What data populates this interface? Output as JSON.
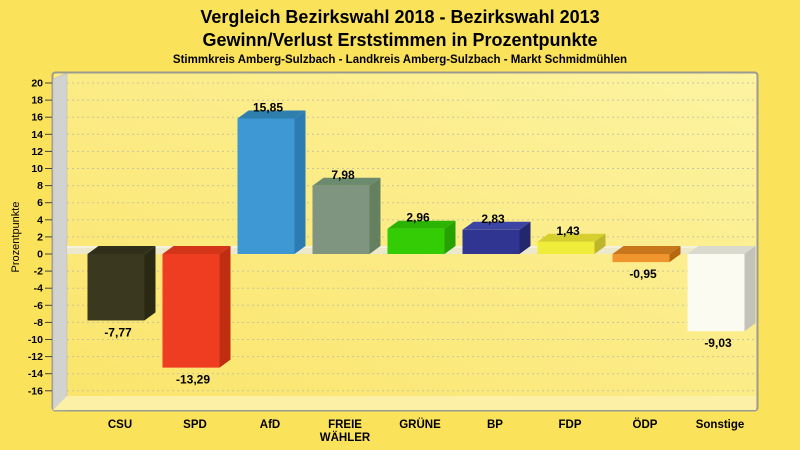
{
  "header": {
    "title_line1": "Vergleich Bezirkswahl 2018 - Bezirkswahl 2013",
    "title_line2": "Gewinn/Verlust Erststimmen in Prozentpunkte",
    "subtitle": "Stimmkreis Amberg-Sulzbach - Landkreis Amberg-Sulzbach - Markt Schmidmühlen"
  },
  "colors": {
    "page_background": "#FBE25B",
    "plot_fill_left": "#FAE469",
    "plot_fill_right": "#FDF3A2",
    "plot_border": "#9B9B8F",
    "wall_gray": "#D2D2D0",
    "floor_yellow": "#FBF0A6",
    "zero_band": "#ECE8CB",
    "gridline": "#B9B9A5",
    "label_text": "#000000"
  },
  "chart_data": {
    "type": "bar",
    "title": "Vergleich Bezirkswahl 2018 - Bezirkswahl 2013",
    "subtitle": "Gewinn/Verlust Erststimmen in Prozentpunkte",
    "footnote": "Stimmkreis Amberg-Sulzbach - Landkreis Amberg-Sulzbach - Markt Schmidmühlen",
    "xlabel": "",
    "ylabel": "Prozentpunkte",
    "ylim": [
      -16,
      20
    ],
    "yticks": [
      20,
      18,
      16,
      14,
      12,
      10,
      8,
      6,
      4,
      2,
      0,
      -2,
      -4,
      -6,
      -8,
      -10,
      -12,
      -14,
      -16
    ],
    "grid": true,
    "legend": false,
    "categories": [
      "CSU",
      "SPD",
      "AfD",
      "FREIE WÄHLER",
      "GRÜNE",
      "BP",
      "FDP",
      "ÖDP",
      "Sonstige"
    ],
    "values": [
      -7.77,
      -13.29,
      15.85,
      7.98,
      2.96,
      2.83,
      1.43,
      -0.95,
      -9.03
    ],
    "value_labels": [
      "-7,77",
      "-13,29",
      "15,85",
      "7,98",
      "2,96",
      "2,83",
      "1,43",
      "-0,95",
      "-9,03"
    ],
    "bar_colors": {
      "front": [
        "#3A381F",
        "#EE3D20",
        "#3D98D4",
        "#7F957F",
        "#33CC05",
        "#2F3590",
        "#F0EC3A",
        "#F0952C",
        "#FBFBF2"
      ],
      "side": [
        "#2A2913",
        "#C02E12",
        "#2C7BB2",
        "#64805F",
        "#27A002",
        "#23286E",
        "#BDB52A",
        "#B5680E",
        "#C3C3BA"
      ],
      "top": [
        "#30301A",
        "#D43518",
        "#2F7FAE",
        "#6B8A6E",
        "#2BB404",
        "#3D45A4",
        "#D6CF2E",
        "#C8761B",
        "#D9D9CE"
      ]
    }
  }
}
